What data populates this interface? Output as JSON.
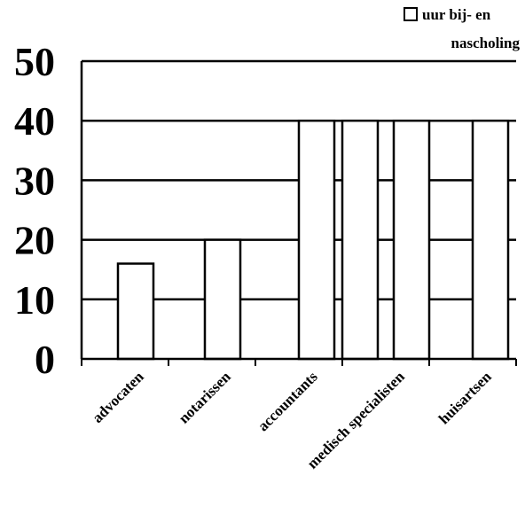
{
  "chart_data": {
    "type": "bar",
    "title": "",
    "xlabel": "",
    "ylabel": "",
    "categories": [
      "advocaten",
      "notarissen",
      "accountants",
      "medisch specialisten",
      "huisartsen"
    ],
    "series": [
      {
        "name": "uur bij- en nascholing",
        "values": [
          [
            16
          ],
          [
            20
          ],
          [
            40
          ],
          [
            40,
            40
          ],
          [
            40
          ]
        ]
      }
    ],
    "ylim": [
      0,
      50
    ],
    "yticks": [
      "0",
      "10",
      "20",
      "30",
      "40",
      "50"
    ],
    "grid": true,
    "legend": {
      "position": "top-right",
      "lines": [
        "uur bij- en",
        "nascholing"
      ]
    },
    "colors": {
      "bar_fill": "#ffffff",
      "bar_stroke": "#000000",
      "grid": "#000000"
    }
  }
}
